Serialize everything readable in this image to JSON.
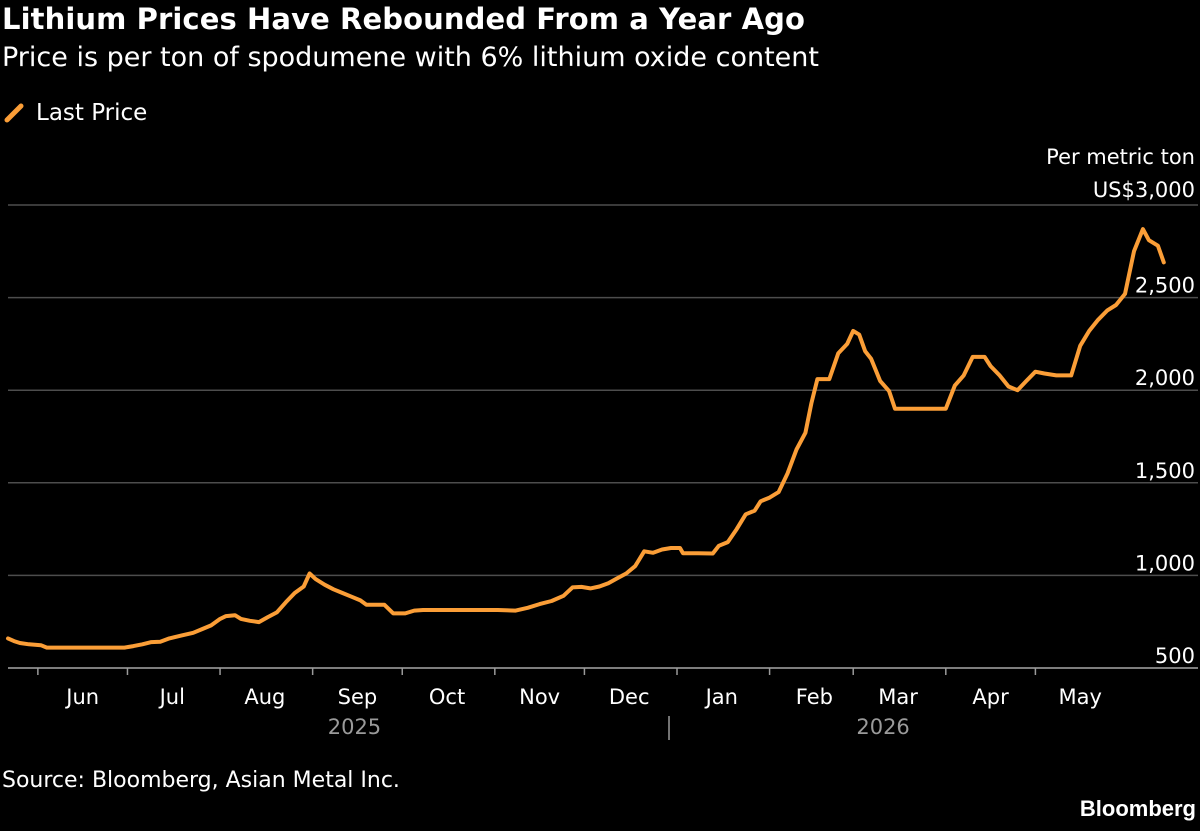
{
  "title": "Lithium Prices Have Rebounded From a Year Ago",
  "subtitle": "Price is per ton of spodumene with 6% lithium oxide content",
  "legend_label": "Last Price",
  "units_line1": "Per metric ton",
  "source": "Source: Bloomberg, Asian Metal Inc.",
  "brand": "Bloomberg",
  "colors": {
    "background": "#000000",
    "line": "#fb9e37",
    "gridline": "#4d4d4d",
    "text": "#ffffff",
    "year_label": "#9a9a9a"
  },
  "chart_data": {
    "type": "line",
    "title": "Lithium Prices Have Rebounded From a Year Ago",
    "subtitle": "Price is per ton of spodumene with 6% lithium oxide content",
    "ylabel": "Per metric ton",
    "ylim": [
      500,
      3000
    ],
    "yticks": [
      500,
      1000,
      1500,
      2000,
      2500,
      3000
    ],
    "ytick_labels": [
      "500",
      "1,000",
      "1,500",
      "2,000",
      "2,500",
      "US$3,000"
    ],
    "xlim": [
      "2025-05-22",
      "2026-05-31"
    ],
    "xticks": [
      {
        "date": "2025-06-01",
        "label": "Jun"
      },
      {
        "date": "2025-07-01",
        "label": "Jul"
      },
      {
        "date": "2025-08-01",
        "label": "Aug"
      },
      {
        "date": "2025-09-01",
        "label": "Sep"
      },
      {
        "date": "2025-10-01",
        "label": "Oct"
      },
      {
        "date": "2025-11-01",
        "label": "Nov"
      },
      {
        "date": "2025-12-01",
        "label": "Dec"
      },
      {
        "date": "2026-01-01",
        "label": "Jan"
      },
      {
        "date": "2026-02-01",
        "label": "Feb"
      },
      {
        "date": "2026-03-01",
        "label": "Mar"
      },
      {
        "date": "2026-04-01",
        "label": "Apr"
      },
      {
        "date": "2026-05-01",
        "label": "May"
      }
    ],
    "year_labels": [
      {
        "date": "2025-09-15",
        "label": "2025"
      },
      {
        "date": "2026-03-11",
        "label": "2026"
      }
    ],
    "year_divider": "2026-01-01",
    "grid": true,
    "legend_position": "top-left",
    "series": [
      {
        "name": "Last Price",
        "points": [
          [
            "2025-05-22",
            660
          ],
          [
            "2025-05-24",
            645
          ],
          [
            "2025-05-26",
            635
          ],
          [
            "2025-05-29",
            628
          ],
          [
            "2025-06-02",
            623
          ],
          [
            "2025-06-04",
            610
          ],
          [
            "2025-06-10",
            610
          ],
          [
            "2025-06-20",
            610
          ],
          [
            "2025-06-30",
            610
          ],
          [
            "2025-07-03",
            618
          ],
          [
            "2025-07-06",
            628
          ],
          [
            "2025-07-09",
            640
          ],
          [
            "2025-07-12",
            642
          ],
          [
            "2025-07-15",
            660
          ],
          [
            "2025-07-19",
            675
          ],
          [
            "2025-07-23",
            690
          ],
          [
            "2025-07-26",
            710
          ],
          [
            "2025-07-29",
            730
          ],
          [
            "2025-08-01",
            765
          ],
          [
            "2025-08-03",
            780
          ],
          [
            "2025-08-06",
            785
          ],
          [
            "2025-08-08",
            765
          ],
          [
            "2025-08-11",
            755
          ],
          [
            "2025-08-14",
            748
          ],
          [
            "2025-08-17",
            775
          ],
          [
            "2025-08-20",
            800
          ],
          [
            "2025-08-23",
            855
          ],
          [
            "2025-08-26",
            905
          ],
          [
            "2025-08-29",
            940
          ],
          [
            "2025-08-31",
            1010
          ],
          [
            "2025-09-02",
            980
          ],
          [
            "2025-09-05",
            950
          ],
          [
            "2025-09-08",
            925
          ],
          [
            "2025-09-11",
            905
          ],
          [
            "2025-09-14",
            885
          ],
          [
            "2025-09-17",
            865
          ],
          [
            "2025-09-19",
            842
          ],
          [
            "2025-09-22",
            842
          ],
          [
            "2025-09-25",
            842
          ],
          [
            "2025-09-28",
            795
          ],
          [
            "2025-10-02",
            795
          ],
          [
            "2025-10-05",
            810
          ],
          [
            "2025-10-08",
            813
          ],
          [
            "2025-10-15",
            813
          ],
          [
            "2025-10-25",
            813
          ],
          [
            "2025-11-02",
            813
          ],
          [
            "2025-11-08",
            810
          ],
          [
            "2025-11-12",
            825
          ],
          [
            "2025-11-16",
            845
          ],
          [
            "2025-11-20",
            862
          ],
          [
            "2025-11-24",
            890
          ],
          [
            "2025-11-27",
            935
          ],
          [
            "2025-11-30",
            938
          ],
          [
            "2025-12-03",
            930
          ],
          [
            "2025-12-06",
            940
          ],
          [
            "2025-12-09",
            958
          ],
          [
            "2025-12-12",
            985
          ],
          [
            "2025-12-15",
            1010
          ],
          [
            "2025-12-18",
            1050
          ],
          [
            "2025-12-21",
            1130
          ],
          [
            "2025-12-24",
            1122
          ],
          [
            "2025-12-27",
            1140
          ],
          [
            "2025-12-30",
            1148
          ],
          [
            "2026-01-02",
            1148
          ],
          [
            "2026-01-03",
            1120
          ],
          [
            "2026-01-08",
            1120
          ],
          [
            "2026-01-13",
            1118
          ],
          [
            "2026-01-15",
            1160
          ],
          [
            "2026-01-18",
            1180
          ],
          [
            "2026-01-21",
            1250
          ],
          [
            "2026-01-24",
            1330
          ],
          [
            "2026-01-27",
            1350
          ],
          [
            "2026-01-29",
            1400
          ],
          [
            "2026-02-01",
            1420
          ],
          [
            "2026-02-04",
            1450
          ],
          [
            "2026-02-07",
            1550
          ],
          [
            "2026-02-10",
            1680
          ],
          [
            "2026-02-13",
            1770
          ],
          [
            "2026-02-15",
            1930
          ],
          [
            "2026-02-17",
            2060
          ],
          [
            "2026-02-21",
            2060
          ],
          [
            "2026-02-24",
            2200
          ],
          [
            "2026-02-27",
            2250
          ],
          [
            "2026-03-01",
            2320
          ],
          [
            "2026-03-03",
            2300
          ],
          [
            "2026-03-05",
            2210
          ],
          [
            "2026-03-07",
            2170
          ],
          [
            "2026-03-10",
            2050
          ],
          [
            "2026-03-13",
            1995
          ],
          [
            "2026-03-15",
            1900
          ],
          [
            "2026-03-20",
            1900
          ],
          [
            "2026-03-26",
            1900
          ],
          [
            "2026-04-01",
            1900
          ],
          [
            "2026-04-04",
            2025
          ],
          [
            "2026-04-07",
            2080
          ],
          [
            "2026-04-10",
            2180
          ],
          [
            "2026-04-14",
            2180
          ],
          [
            "2026-04-16",
            2130
          ],
          [
            "2026-04-19",
            2080
          ],
          [
            "2026-04-22",
            2020
          ],
          [
            "2026-04-25",
            2000
          ],
          [
            "2026-04-28",
            2050
          ],
          [
            "2026-05-01",
            2100
          ],
          [
            "2026-05-04",
            2090
          ],
          [
            "2026-05-08",
            2080
          ],
          [
            "2026-05-13",
            2080
          ],
          [
            "2026-05-16",
            2240
          ],
          [
            "2026-05-19",
            2320
          ],
          [
            "2026-05-22",
            2380
          ],
          [
            "2026-05-25",
            2430
          ],
          [
            "2026-05-28",
            2460
          ],
          [
            "2026-05-31",
            2520
          ],
          [
            "2026-06-03",
            2750
          ],
          [
            "2026-06-06",
            2870
          ],
          [
            "2026-06-08",
            2810
          ],
          [
            "2026-06-11",
            2780
          ],
          [
            "2026-06-13",
            2690
          ]
        ]
      }
    ]
  }
}
